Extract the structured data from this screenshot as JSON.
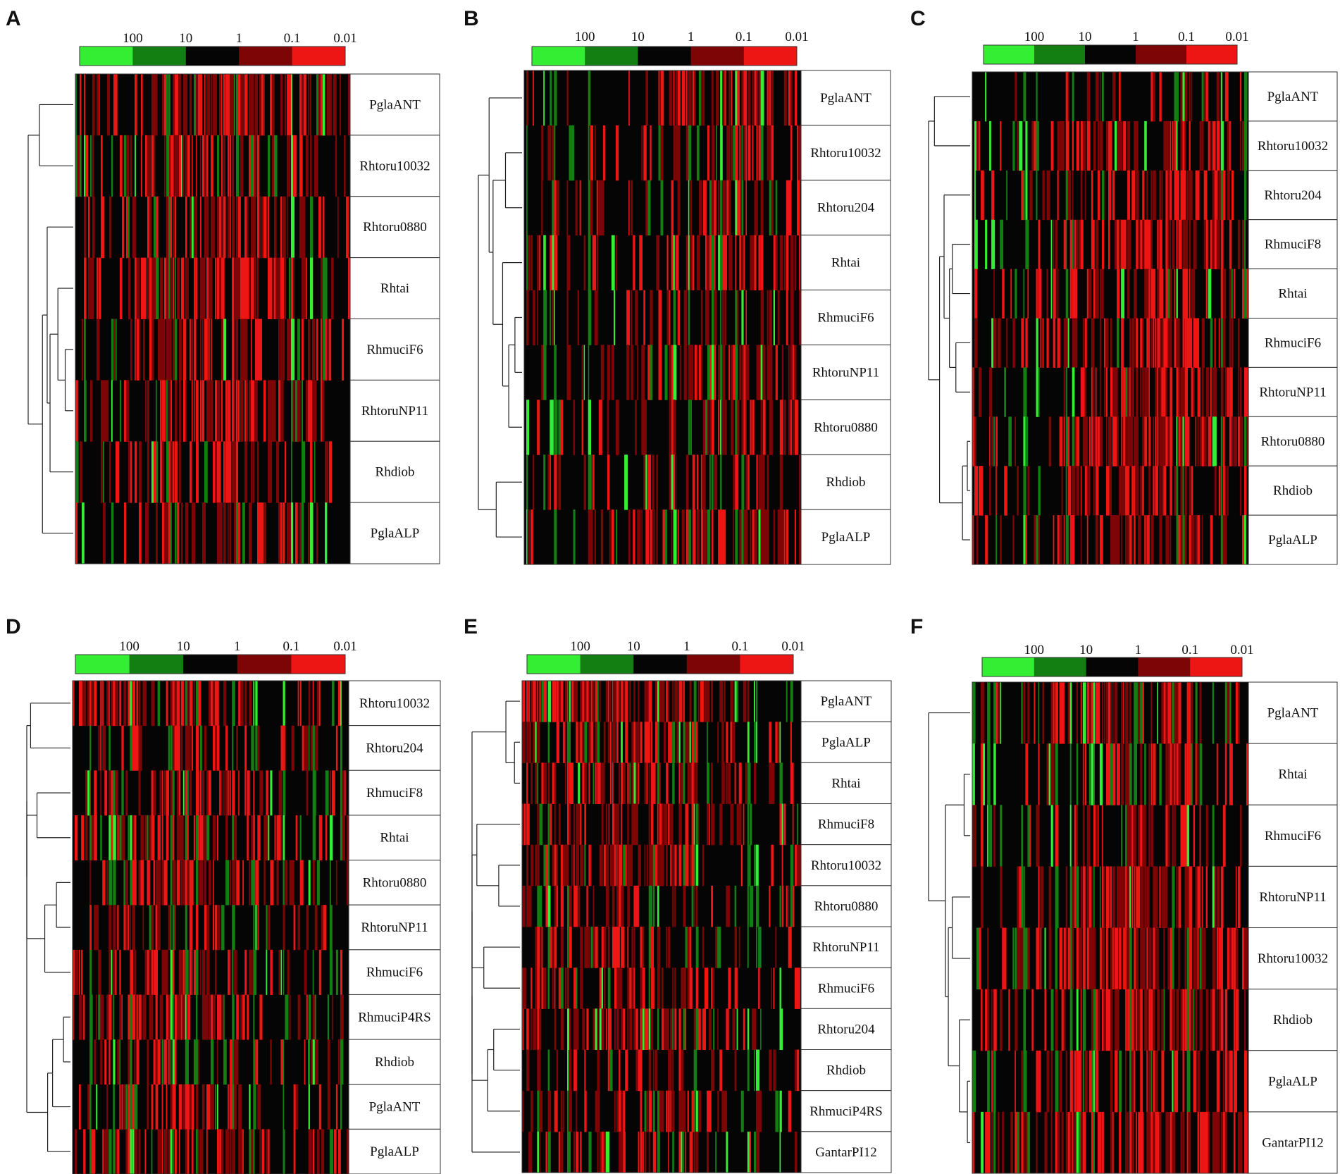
{
  "colors": {
    "bright_green": "#33ee33",
    "dark_green": "#137f13",
    "black": "#050505",
    "dark_red": "#7e0505",
    "bright_red": "#ee1515",
    "border": "#333333"
  },
  "color_key": {
    "ticks": [
      "100",
      "10",
      "1",
      "0.1",
      "0.01"
    ],
    "bins": [
      "bright_green",
      "dark_green",
      "black",
      "dark_red",
      "bright_red"
    ]
  },
  "chart_data": [
    {
      "type": "heatmap",
      "panel": "A",
      "rows": [
        "PglaANT",
        "Rhtoru10032",
        "Rhtoru0880",
        "Rhtai",
        "RhmuciF6",
        "RhtoruNP11",
        "Rhdiob",
        "PglaALP"
      ],
      "legend_ticks": [
        "100",
        "10",
        "1",
        "0.1",
        "0.01"
      ],
      "dendrogram": "hierarchical clustering of rows"
    },
    {
      "type": "heatmap",
      "panel": "B",
      "rows": [
        "PglaANT",
        "Rhtoru10032",
        "Rhtoru204",
        "Rhtai",
        "RhmuciF6",
        "RhtoruNP11",
        "Rhtoru0880",
        "Rhdiob",
        "PglaALP"
      ],
      "legend_ticks": [
        "100",
        "10",
        "1",
        "0.1",
        "0.01"
      ],
      "dendrogram": "hierarchical clustering of rows"
    },
    {
      "type": "heatmap",
      "panel": "C",
      "rows": [
        "PglaANT",
        "Rhtoru10032",
        "Rhtoru204",
        "RhmuciF8",
        "Rhtai",
        "RhmuciF6",
        "RhtoruNP11",
        "Rhtoru0880",
        "Rhdiob",
        "PglaALP"
      ],
      "legend_ticks": [
        "100",
        "10",
        "1",
        "0.1",
        "0.01"
      ],
      "dendrogram": "hierarchical clustering of rows"
    },
    {
      "type": "heatmap",
      "panel": "D",
      "rows": [
        "Rhtoru10032",
        "Rhtoru204",
        "RhmuciF8",
        "Rhtai",
        "Rhtoru0880",
        "RhtoruNP11",
        "RhmuciF6",
        "RhmuciP4RS",
        "Rhdiob",
        "PglaANT",
        "PglaALP"
      ],
      "legend_ticks": [
        "100",
        "10",
        "1",
        "0.1",
        "0.01"
      ],
      "dendrogram": "hierarchical clustering of rows"
    },
    {
      "type": "heatmap",
      "panel": "E",
      "rows": [
        "PglaANT",
        "PglaALP",
        "Rhtai",
        "RhmuciF8",
        "Rhtoru10032",
        "Rhtoru0880",
        "RhtoruNP11",
        "RhmuciF6",
        "Rhtoru204",
        "Rhdiob",
        "RhmuciP4RS",
        "GantarPI12"
      ],
      "legend_ticks": [
        "100",
        "10",
        "1",
        "0.1",
        "0.01"
      ],
      "dendrogram": "hierarchical clustering of rows"
    },
    {
      "type": "heatmap",
      "panel": "F",
      "rows": [
        "PglaANT",
        "Rhtai",
        "RhmuciF6",
        "RhtoruNP11",
        "Rhtoru10032",
        "Rhdiob",
        "PglaALP",
        "GantarPI12"
      ],
      "legend_ticks": [
        "100",
        "10",
        "1",
        "0.1",
        "0.01"
      ],
      "dendrogram": "hierarchical clustering of rows"
    }
  ]
}
